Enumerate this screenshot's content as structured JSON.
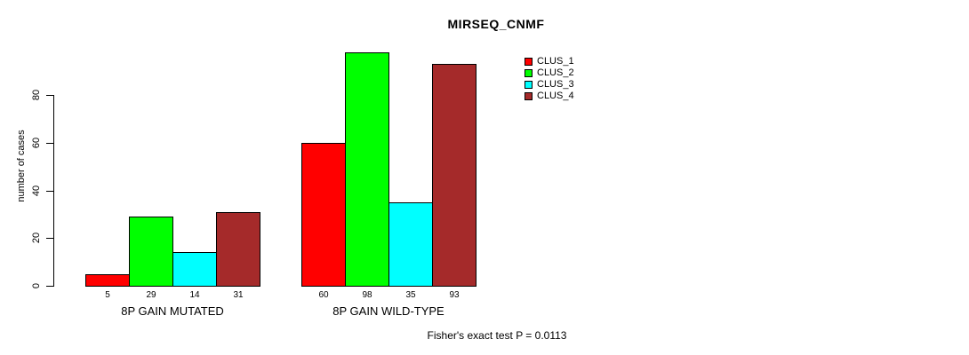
{
  "title": "MIRSEQ_CNMF",
  "annotation": "Fisher's exact test P = 0.0113",
  "colors": {
    "clus_1": "#FF0000",
    "clus_2": "#00FF00",
    "clus_3": "#00FFFF",
    "clus_4": "#A52A2A",
    "axis": "#000000",
    "background": "#FFFFFF"
  },
  "chart_data": {
    "type": "bar",
    "title": "MIRSEQ_CNMF",
    "xlabel": "",
    "ylabel": "number of cases",
    "ylim": [
      0,
      105
    ],
    "yticks": [
      0,
      20,
      40,
      60,
      80
    ],
    "grid": false,
    "legend_position": "top-right",
    "categories": [
      "8P GAIN MUTATED",
      "8P GAIN WILD-TYPE"
    ],
    "series": [
      {
        "name": "CLUS_1",
        "color": "#FF0000",
        "values": [
          5,
          60
        ]
      },
      {
        "name": "CLUS_2",
        "color": "#00FF00",
        "values": [
          29,
          98
        ]
      },
      {
        "name": "CLUS_3",
        "color": "#00FFFF",
        "values": [
          14,
          35
        ]
      },
      {
        "name": "CLUS_4",
        "color": "#A52A2A",
        "values": [
          31,
          93
        ]
      }
    ],
    "bar_count_labels": [
      [
        5,
        29,
        14,
        31
      ],
      [
        60,
        98,
        35,
        93
      ]
    ],
    "annotation": "Fisher's exact test P = 0.0113"
  }
}
